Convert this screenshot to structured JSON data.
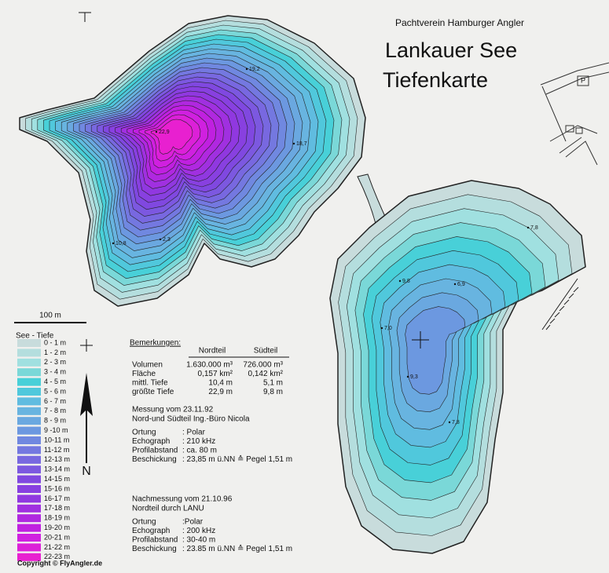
{
  "header": {
    "organization": "Pachtverein Hamburger Angler",
    "title": "Lankauer See",
    "subtitle": "Tiefenkarte"
  },
  "scale_bar": "100 m",
  "north": "N",
  "inset": {
    "parking": "P"
  },
  "legend": {
    "title": "See - Tiefe",
    "items": [
      {
        "label": "0 - 1 m",
        "color": "#c8dcdc"
      },
      {
        "label": "1 - 2 m",
        "color": "#b4dede"
      },
      {
        "label": "2 - 3 m",
        "color": "#a0e0e0"
      },
      {
        "label": "3 - 4 m",
        "color": "#7ad8d8"
      },
      {
        "label": "4 - 5 m",
        "color": "#48d0d8"
      },
      {
        "label": "5 - 6 m",
        "color": "#50c8dc"
      },
      {
        "label": "6 - 7 m",
        "color": "#60bce0"
      },
      {
        "label": "7 - 8 m",
        "color": "#68b4e0"
      },
      {
        "label": "8 - 9 m",
        "color": "#6aa8e0"
      },
      {
        "label": "9 -10 m",
        "color": "#6c98e0"
      },
      {
        "label": "10-11 m",
        "color": "#7088e0"
      },
      {
        "label": "11-12 m",
        "color": "#7478e0"
      },
      {
        "label": "12-13 m",
        "color": "#7868e0"
      },
      {
        "label": "13-14 m",
        "color": "#7c58e0"
      },
      {
        "label": "14-15 m",
        "color": "#8048e0"
      },
      {
        "label": "15-16 m",
        "color": "#8840e0"
      },
      {
        "label": "16-17 m",
        "color": "#9038e0"
      },
      {
        "label": "17-18 m",
        "color": "#a030e0"
      },
      {
        "label": "18-19 m",
        "color": "#b028e0"
      },
      {
        "label": "19-20 m",
        "color": "#c020e0"
      },
      {
        "label": "20-21 m",
        "color": "#d020e0"
      },
      {
        "label": "21-22 m",
        "color": "#dc20d8"
      },
      {
        "label": "22-23 m",
        "color": "#e820d0"
      }
    ]
  },
  "spot_depths": {
    "north": [
      "22,9",
      "19,2",
      "18,7",
      "10,8",
      "2,3"
    ],
    "south": [
      "9,8",
      "6,9",
      "7,8",
      "7,0",
      "9,3",
      "7,8"
    ]
  },
  "remarks": {
    "title": "Bemerkungen:",
    "columns": [
      "Nordteil",
      "Südteil"
    ],
    "rows": [
      {
        "label": "Volumen",
        "north": "1.630.000 m³",
        "south": "726.000 m³"
      },
      {
        "label": "Fläche",
        "north": "0,157 km²",
        "south": "0,142 km²"
      },
      {
        "label": "mittl. Tiefe",
        "north": "10,4 m",
        "south": "5,1 m"
      },
      {
        "label": "größte Tiefe",
        "north": "22,9 m",
        "south": "9,8 m"
      }
    ]
  },
  "survey": {
    "heading": "Messung vom 23.11.92",
    "by": "Nord-und Südteil Ing.-Büro Nicola",
    "rows": [
      {
        "label": "Ortung",
        "value": ": Polar"
      },
      {
        "label": "Echograph",
        "value": ": 210 kHz"
      },
      {
        "label": "Profilabstand",
        "value": ": ca. 80 m"
      },
      {
        "label": "Beschickung",
        "value": ": 23,85 m ü.NN ≙ Pegel 1,51 m"
      }
    ]
  },
  "resurvey": {
    "heading": "Nachmessung vom 21.10.96",
    "by": "Nordteil durch LANU",
    "rows": [
      {
        "label": "Ortung",
        "value": ":Polar"
      },
      {
        "label": "Echograph",
        "value": ": 200 kHz"
      },
      {
        "label": "Profilabstand",
        "value": ": 30-40 m"
      },
      {
        "label": "Beschickung",
        "value": ": 23.85 m ü.NN ≙ Pegel 1,51 m"
      }
    ]
  },
  "copyright": "Copyright © FlyAngler.de"
}
